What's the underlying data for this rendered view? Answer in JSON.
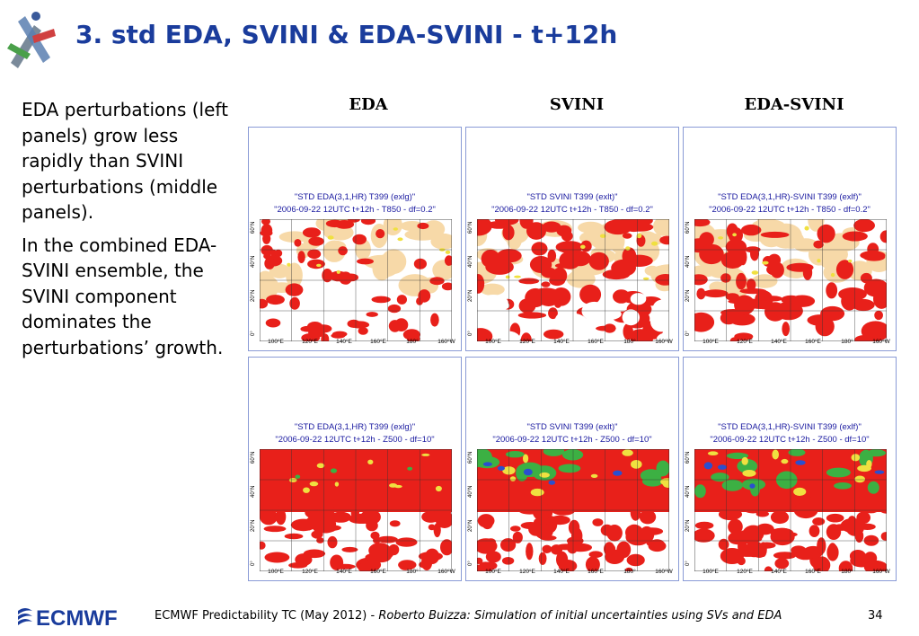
{
  "title": "3. std EDA, SVINI & EDA-SVINI - t+12h",
  "body": {
    "paragraph1": "EDA perturbations (left panels) grow less rapidly than SVINI perturbations (middle panels).",
    "paragraph2": "In the combined EDA-SVINI ensemble, the SVINI component dominates the perturbations’ growth."
  },
  "columns": [
    "EDA",
    "SVINI",
    "EDA-SVINI"
  ],
  "panels": [
    {
      "line1": "\"STD EDA(3,1,HR) T399 (exlg)\"",
      "line2": "\"2006-09-22 12UTC t+12h - T850 - df=0.2\"",
      "field": "T850",
      "style": "t850-eda"
    },
    {
      "line1": "\"STD SVINI T399 (exlt)\"",
      "line2": "\"2006-09-22 12UTC t+12h - T850 - df=0.2\"",
      "field": "T850",
      "style": "t850-sv"
    },
    {
      "line1": "\"STD EDA(3,1,HR)-SVINI T399 (exlf)\"",
      "line2": "\"2006-09-22 12UTC t+12h - T850 - df=0.2\"",
      "field": "T850",
      "style": "t850-mix"
    },
    {
      "line1": "\"STD EDA(3,1,HR) T399 (exlg)\"",
      "line2": "\"2006-09-22 12UTC t+12h - Z500 - df=10\"",
      "field": "Z500",
      "style": "z500-eda"
    },
    {
      "line1": "\"STD SVINI T399 (exlt)\"",
      "line2": "\"2006-09-22 12UTC t+12h - Z500 - df=10\"",
      "field": "Z500",
      "style": "z500-sv"
    },
    {
      "line1": "\"STD EDA(3,1,HR)-SVINI T399 (exlf)\"",
      "line2": "\"2006-09-22 12UTC t+12h - Z500 - df=10\"",
      "field": "Z500",
      "style": "z500-mix"
    }
  ],
  "map_axes": {
    "lon_labels": [
      "100°E",
      "120°E",
      "140°E",
      "160°E",
      "180°",
      "160°W"
    ],
    "lat_labels": [
      "0°",
      "20°N",
      "40°N",
      "60°N"
    ]
  },
  "colors": {
    "title": "#1a3c9c",
    "field_red": "#e8201a",
    "field_beige": "#f7d9a8",
    "field_green": "#3cb043",
    "field_yellow": "#f0e040",
    "field_blue": "#2a4fd0",
    "panel_border": "#8a9bd6"
  },
  "footer": {
    "logo": "ECMWF",
    "text": "ECMWF Predictability TC (May 2012) - ",
    "italic": "Roberto Buizza: Simulation of initial uncertainties using SVs and EDA",
    "page": "34"
  }
}
